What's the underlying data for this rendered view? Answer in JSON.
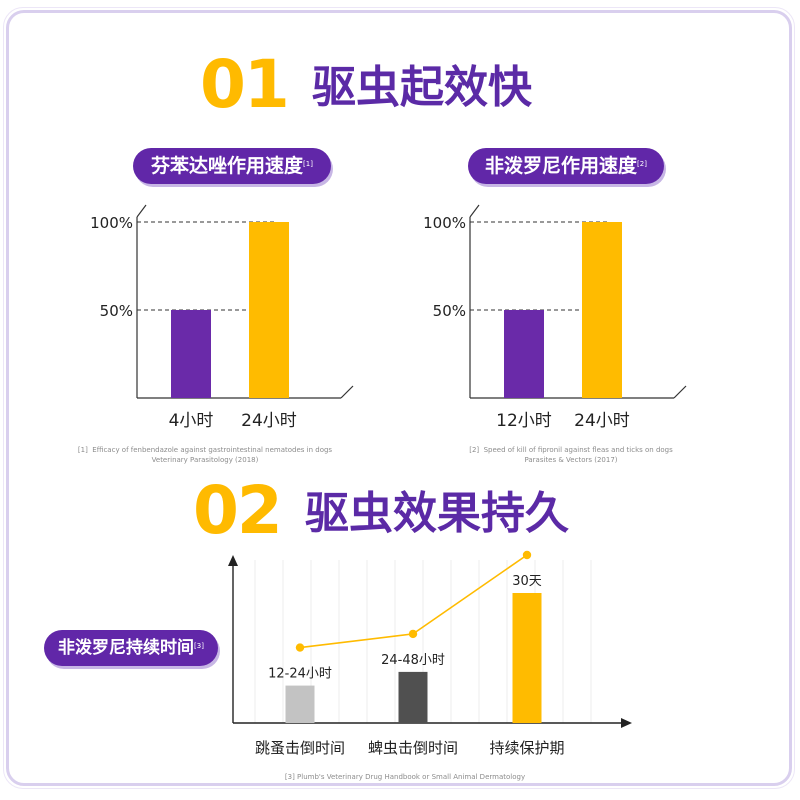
{
  "section1": {
    "number": "01",
    "title": "驱虫起效快"
  },
  "section2": {
    "number": "02",
    "title": "驱虫效果持久"
  },
  "colors": {
    "purple": "#6a2aa9",
    "yellow": "#ffbb00",
    "lightgray": "#c3c3c3",
    "darkgray": "#505050",
    "title_purple": "#5b2aa6"
  },
  "chart1": {
    "pill_text": "芬苯达唑作用速度",
    "pill_sup": "[1]",
    "reference": {
      "marker": "[1]",
      "line1": "Efficacy of fenbendazole against gastrointestinal nematodes in dogs",
      "line2": "Veterinary Parasitology (2018)"
    }
  },
  "chart2": {
    "pill_text": "非泼罗尼作用速度",
    "pill_sup": "[2]",
    "reference": {
      "marker": "[2]",
      "line1": "Speed of kill of fipronil against fleas and ticks on dogs",
      "line2": "Parasites & Vectors (2017)"
    }
  },
  "chart3": {
    "pill_text": "非泼罗尼持续时间",
    "pill_sup": "[3]",
    "reference": "[3]  Plumb's Veterinary Drug Handbook or Small Animal Dermatology"
  },
  "chart_data": [
    {
      "type": "bar",
      "title": "芬苯达唑作用速度",
      "categories": [
        "4小时",
        "24小时"
      ],
      "values": [
        50,
        100
      ],
      "value_unit": "%",
      "yticks": [
        "50%",
        "100%"
      ],
      "ylim": [
        0,
        120
      ],
      "bar_colors": [
        "#6a2aa9",
        "#ffbb00"
      ],
      "grid": "dashed reference lines at ticks"
    },
    {
      "type": "bar",
      "title": "非泼罗尼作用速度",
      "categories": [
        "12小时",
        "24小时"
      ],
      "values": [
        50,
        100
      ],
      "value_unit": "%",
      "yticks": [
        "50%",
        "100%"
      ],
      "ylim": [
        0,
        120
      ],
      "bar_colors": [
        "#6a2aa9",
        "#ffbb00"
      ],
      "grid": "dashed reference lines at ticks"
    },
    {
      "type": "bar",
      "title": "非泼罗尼持续时间",
      "categories": [
        "跳蚤击倒时间",
        "蜱虫击倒时间",
        "持续保护期"
      ],
      "data_labels": [
        "12-24小时",
        "24-48小时",
        "30天"
      ],
      "values": [
        1,
        2,
        30
      ],
      "value_unit": "天",
      "bar_colors": [
        "#c3c3c3",
        "#505050",
        "#ffbb00"
      ],
      "overlay_line": true,
      "grid": "vertical lines"
    }
  ]
}
